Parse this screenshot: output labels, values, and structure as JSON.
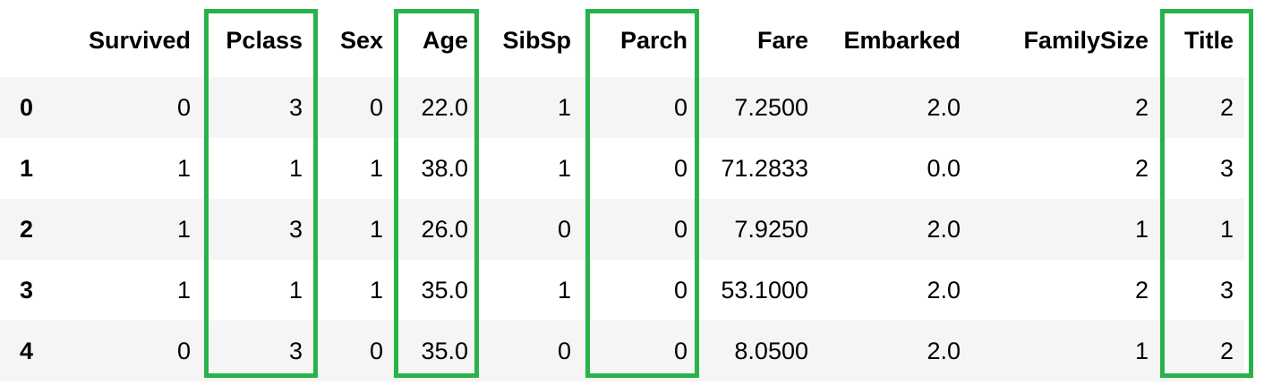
{
  "columns": [
    "",
    "Survived",
    "Pclass",
    "Sex",
    "Age",
    "SibSp",
    "Parch",
    "Fare",
    "Embarked",
    "FamilySize",
    "Title"
  ],
  "rows": [
    {
      "index": "0",
      "cells": [
        "0",
        "3",
        "0",
        "22.0",
        "1",
        "0",
        "7.2500",
        "2.0",
        "2",
        "2"
      ]
    },
    {
      "index": "1",
      "cells": [
        "1",
        "1",
        "1",
        "38.0",
        "1",
        "0",
        "71.2833",
        "0.0",
        "2",
        "3"
      ]
    },
    {
      "index": "2",
      "cells": [
        "1",
        "3",
        "1",
        "26.0",
        "0",
        "0",
        "7.9250",
        "2.0",
        "1",
        "1"
      ]
    },
    {
      "index": "3",
      "cells": [
        "1",
        "1",
        "1",
        "35.0",
        "1",
        "0",
        "53.1000",
        "2.0",
        "2",
        "3"
      ]
    },
    {
      "index": "4",
      "cells": [
        "0",
        "3",
        "0",
        "35.0",
        "0",
        "0",
        "8.0500",
        "2.0",
        "1",
        "2"
      ]
    }
  ],
  "highlighted_columns": [
    "Pclass",
    "Age",
    "Parch",
    "Title"
  ],
  "colors": {
    "highlight": "#27b34a",
    "stripe": "#f5f5f5"
  }
}
